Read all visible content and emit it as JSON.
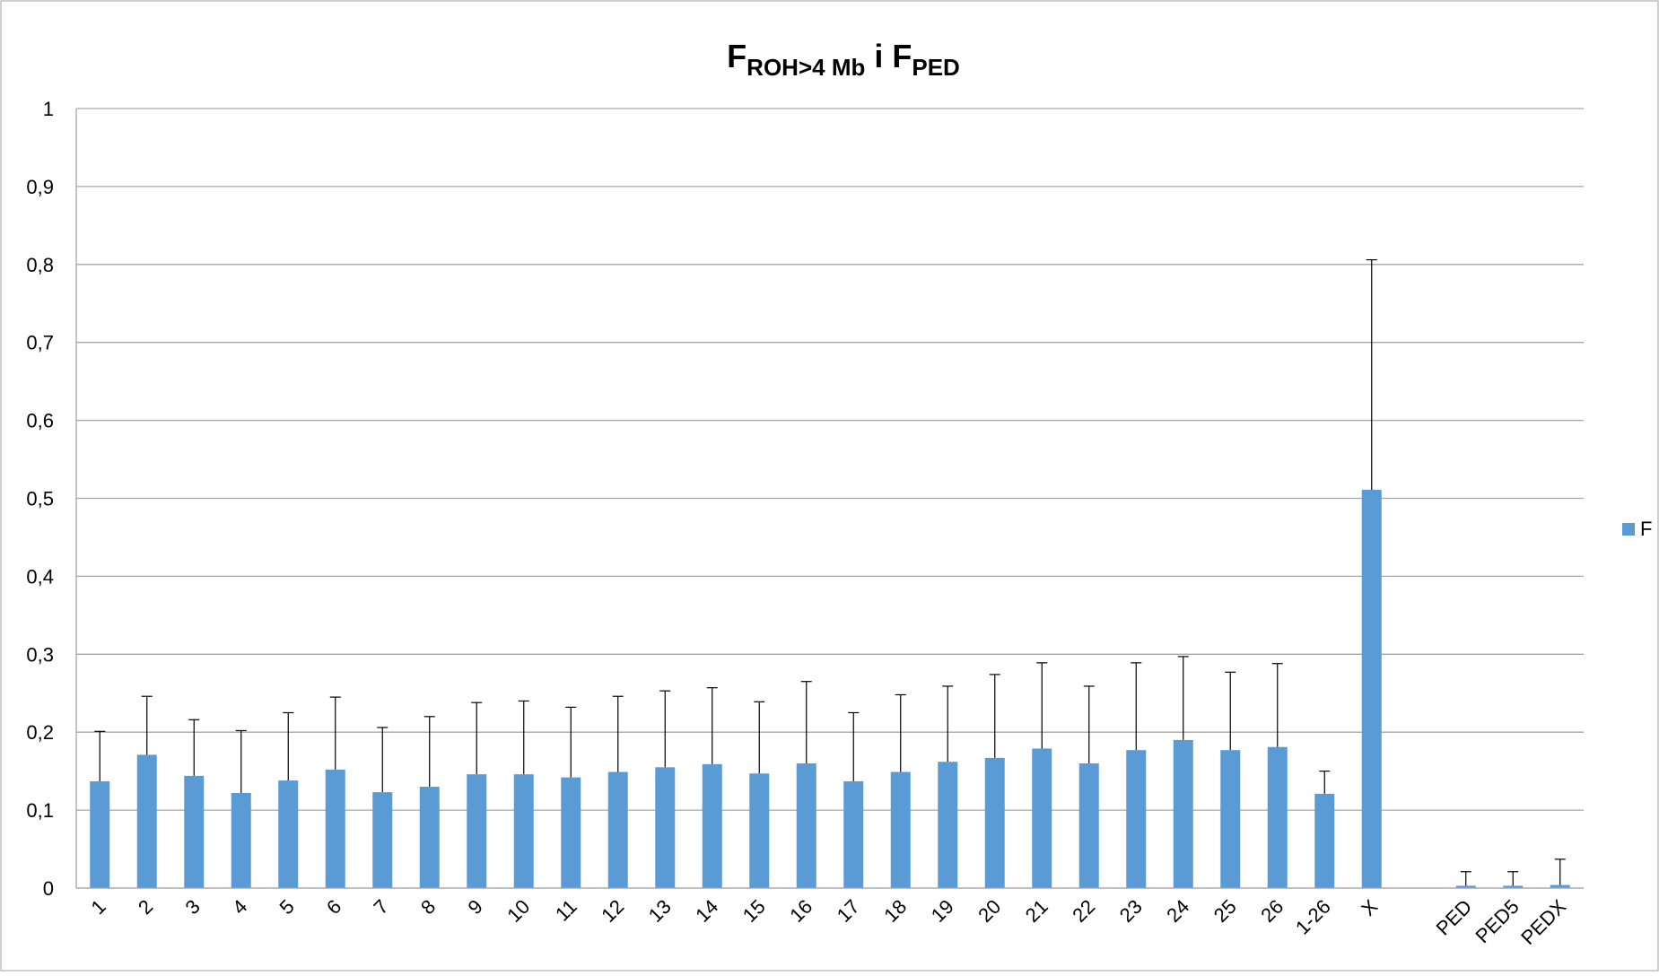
{
  "chart_data": {
    "type": "bar",
    "title": {
      "main": "F",
      "sub1": "ROH>4 Mb",
      "mid": " i F",
      "sub2": "PED"
    },
    "categories": [
      "1",
      "2",
      "3",
      "4",
      "5",
      "6",
      "7",
      "8",
      "9",
      "10",
      "11",
      "12",
      "13",
      "14",
      "15",
      "16",
      "17",
      "18",
      "19",
      "20",
      "21",
      "22",
      "23",
      "24",
      "25",
      "26",
      "1-26",
      "X",
      "",
      "PED",
      "PED5",
      "PEDX"
    ],
    "series": [
      {
        "name": "F",
        "color": "#5b9bd5",
        "values": [
          0.137,
          0.171,
          0.144,
          0.122,
          0.138,
          0.152,
          0.123,
          0.13,
          0.146,
          0.146,
          0.142,
          0.149,
          0.155,
          0.159,
          0.147,
          0.16,
          0.137,
          0.149,
          0.162,
          0.167,
          0.179,
          0.16,
          0.177,
          0.19,
          0.177,
          0.181,
          0.121,
          0.511,
          null,
          0.003,
          0.003,
          0.004
        ],
        "error_plus": [
          0.064,
          0.075,
          0.072,
          0.08,
          0.087,
          0.093,
          0.083,
          0.09,
          0.092,
          0.094,
          0.09,
          0.097,
          0.098,
          0.098,
          0.092,
          0.105,
          0.088,
          0.099,
          0.097,
          0.107,
          0.11,
          0.099,
          0.112,
          0.107,
          0.1,
          0.107,
          0.029,
          0.295,
          null,
          0.018,
          0.018,
          0.033
        ]
      }
    ],
    "ylim": [
      0,
      1
    ],
    "yticks": [
      "0",
      "0,1",
      "0,2",
      "0,3",
      "0,4",
      "0,5",
      "0,6",
      "0,7",
      "0,8",
      "0,9",
      "1"
    ],
    "grid": true,
    "legend": {
      "position": "right",
      "label": "F"
    }
  }
}
